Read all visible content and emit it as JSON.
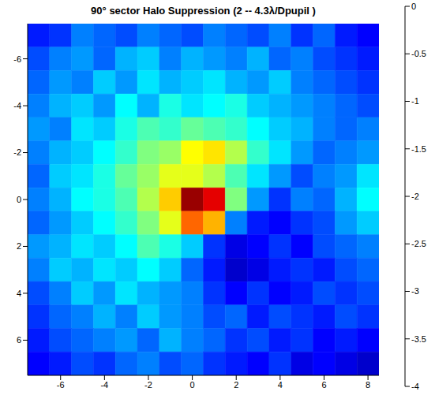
{
  "chart_data": {
    "type": "heatmap",
    "title": "90° sector Halo Suppression (2 -- 4.3λ/Dpupil )",
    "xlim": [
      -7.5,
      8.5
    ],
    "xticks": [
      -6,
      -4,
      -2,
      0,
      2,
      4,
      6,
      8
    ],
    "ylim": [
      -7.5,
      7.5
    ],
    "yticks": [
      -6,
      -4,
      -2,
      0,
      2,
      4,
      6
    ],
    "grid": false,
    "cells": {
      "x": [
        -7,
        -6,
        -5,
        -4,
        -3,
        -2,
        -1,
        0,
        1,
        2,
        3,
        4,
        5,
        6,
        7,
        8
      ],
      "y": [
        -7,
        -6,
        -5,
        -4,
        -3,
        -2,
        -1,
        0,
        1,
        2,
        3,
        4,
        5,
        6,
        7
      ],
      "z": [
        [
          -3.4,
          -3.3,
          -3.0,
          -3.1,
          -3.2,
          -3.0,
          -3.1,
          -3.2,
          -3.0,
          -3.1,
          -3.2,
          -3.0,
          -3.3,
          -3.1,
          -3.4,
          -3.5
        ],
        [
          -3.2,
          -3.0,
          -2.9,
          -3.1,
          -2.8,
          -2.7,
          -3.0,
          -2.8,
          -2.9,
          -3.0,
          -2.8,
          -3.1,
          -3.0,
          -3.2,
          -3.3,
          -3.4
        ],
        [
          -3.1,
          -2.9,
          -3.0,
          -2.7,
          -2.9,
          -2.6,
          -2.8,
          -2.7,
          -2.6,
          -2.8,
          -2.9,
          -2.7,
          -3.0,
          -3.1,
          -3.2,
          -3.3
        ],
        [
          -3.0,
          -2.8,
          -2.7,
          -2.9,
          -2.5,
          -2.8,
          -2.4,
          -2.6,
          -2.5,
          -2.4,
          -2.7,
          -2.8,
          -2.9,
          -3.0,
          -3.1,
          -3.2
        ],
        [
          -2.9,
          -3.0,
          -2.6,
          -2.7,
          -2.4,
          -2.2,
          -2.3,
          -2.1,
          -2.2,
          -2.3,
          -2.5,
          -2.7,
          -2.8,
          -3.0,
          -3.1,
          -3.0
        ],
        [
          -3.0,
          -2.8,
          -2.7,
          -2.5,
          -2.3,
          -2.0,
          -1.9,
          -1.5,
          -1.4,
          -1.8,
          -2.3,
          -2.6,
          -2.9,
          -3.1,
          -3.0,
          -2.9
        ],
        [
          -3.1,
          -2.7,
          -2.6,
          -2.4,
          -2.1,
          -1.9,
          -1.6,
          -1.6,
          -1.8,
          -2.2,
          -2.6,
          -2.9,
          -3.2,
          -3.0,
          -2.9,
          -2.6
        ],
        [
          -3.0,
          -2.8,
          -2.5,
          -2.4,
          -2.2,
          -1.8,
          -1.3,
          -0.1,
          -0.4,
          -2.0,
          -2.9,
          -3.3,
          -3.0,
          -3.1,
          -2.8,
          -2.5
        ],
        [
          -3.1,
          -2.9,
          -2.7,
          -2.5,
          -2.3,
          -2.0,
          -1.6,
          -0.9,
          -1.2,
          -3.0,
          -3.4,
          -3.5,
          -3.3,
          -3.2,
          -2.9,
          -2.7
        ],
        [
          -2.9,
          -2.8,
          -2.6,
          -2.7,
          -2.5,
          -2.2,
          -2.4,
          -2.7,
          -3.3,
          -3.6,
          -3.5,
          -3.3,
          -3.5,
          -3.2,
          -3.1,
          -3.0
        ],
        [
          -3.0,
          -2.7,
          -2.8,
          -2.6,
          -2.7,
          -2.5,
          -2.7,
          -3.1,
          -3.4,
          -3.7,
          -3.6,
          -3.4,
          -3.3,
          -3.4,
          -3.2,
          -3.1
        ],
        [
          -3.2,
          -3.0,
          -2.7,
          -2.9,
          -2.6,
          -2.8,
          -2.9,
          -3.0,
          -3.3,
          -3.5,
          -3.3,
          -3.5,
          -3.4,
          -3.2,
          -3.3,
          -3.2
        ],
        [
          -3.3,
          -3.1,
          -3.0,
          -2.8,
          -3.0,
          -2.7,
          -2.9,
          -3.0,
          -3.2,
          -3.1,
          -3.4,
          -3.2,
          -3.3,
          -3.4,
          -3.2,
          -3.3
        ],
        [
          -3.4,
          -3.2,
          -3.1,
          -3.0,
          -2.9,
          -3.1,
          -2.8,
          -3.0,
          -3.1,
          -3.3,
          -3.2,
          -3.4,
          -3.3,
          -3.5,
          -3.4,
          -3.5
        ],
        [
          -3.5,
          -3.4,
          -3.2,
          -3.3,
          -3.1,
          -3.0,
          -3.2,
          -3.1,
          -3.3,
          -3.4,
          -3.5,
          -3.3,
          -3.6,
          -3.5,
          -3.6,
          -3.7
        ]
      ]
    },
    "colorbar": {
      "range": [
        -4,
        0
      ],
      "ticks": [
        0,
        -0.5,
        -1,
        -1.5,
        -2,
        -2.5,
        -3,
        -3.5,
        -4
      ]
    }
  }
}
